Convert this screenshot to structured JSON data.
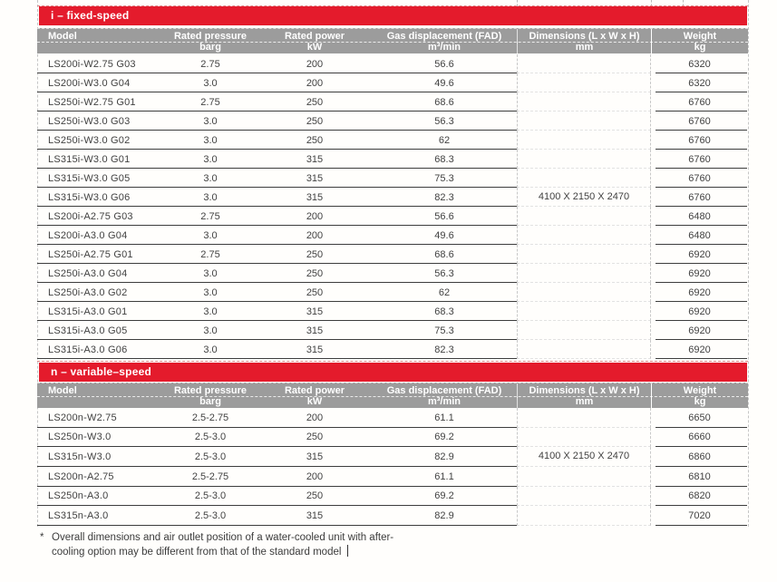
{
  "header": {
    "model": "Model",
    "pressure": "Rated pressure",
    "pressure_unit": "barg",
    "power": "Rated power",
    "power_unit": "kW",
    "fad": "Gas displacement (FAD)",
    "fad_unit": "m³/min",
    "dims": "Dimensions (L x W x H)",
    "dims_unit": "mm",
    "weight": "Weight",
    "weight_unit": "kg"
  },
  "sections": [
    {
      "banner": "i – fixed-speed",
      "dimensions_value": "4100 X 2150 X 2470",
      "rows": [
        {
          "model": "LS200i-W2.75 G03",
          "pressure": "2.75",
          "power": "200",
          "fad": "56.6",
          "weight": "6320"
        },
        {
          "model": "LS200i-W3.0 G04",
          "pressure": "3.0",
          "power": "200",
          "fad": "49.6",
          "weight": "6320"
        },
        {
          "model": "LS250i-W2.75 G01",
          "pressure": "2.75",
          "power": "250",
          "fad": "68.6",
          "weight": "6760"
        },
        {
          "model": "LS250i-W3.0 G03",
          "pressure": "3.0",
          "power": "250",
          "fad": "56.3",
          "weight": "6760"
        },
        {
          "model": "LS250i-W3.0 G02",
          "pressure": "3.0",
          "power": "250",
          "fad": "62",
          "weight": "6760"
        },
        {
          "model": "LS315i-W3.0 G01",
          "pressure": "3.0",
          "power": "315",
          "fad": "68.3",
          "weight": "6760"
        },
        {
          "model": "LS315i-W3.0 G05",
          "pressure": "3.0",
          "power": "315",
          "fad": "75.3",
          "weight": "6760"
        },
        {
          "model": "LS315i-W3.0 G06",
          "pressure": "3.0",
          "power": "315",
          "fad": "82.3",
          "weight": "6760"
        },
        {
          "model": "LS200i-A2.75 G03",
          "pressure": "2.75",
          "power": "200",
          "fad": "56.6",
          "weight": "6480"
        },
        {
          "model": "LS200i-A3.0 G04",
          "pressure": "3.0",
          "power": "200",
          "fad": "49.6",
          "weight": "6480"
        },
        {
          "model": "LS250i-A2.75 G01",
          "pressure": "2.75",
          "power": "250",
          "fad": "68.6",
          "weight": "6920"
        },
        {
          "model": "LS250i-A3.0 G04",
          "pressure": "3.0",
          "power": "250",
          "fad": "56.3",
          "weight": "6920"
        },
        {
          "model": "LS250i-A3.0 G02",
          "pressure": "3.0",
          "power": "250",
          "fad": "62",
          "weight": "6920"
        },
        {
          "model": "LS315i-A3.0 G01",
          "pressure": "3.0",
          "power": "315",
          "fad": "68.3",
          "weight": "6920"
        },
        {
          "model": "LS315i-A3.0 G05",
          "pressure": "3.0",
          "power": "315",
          "fad": "75.3",
          "weight": "6920"
        },
        {
          "model": "LS315i-A3.0 G06",
          "pressure": "3.0",
          "power": "315",
          "fad": "82.3",
          "weight": "6920"
        }
      ]
    },
    {
      "banner": "n – variable–speed",
      "dimensions_value": "4100 X 2150 X 2470",
      "rows": [
        {
          "model": "LS200n-W2.75",
          "pressure": "2.5-2.75",
          "power": "200",
          "fad": "61.1",
          "weight": "6650"
        },
        {
          "model": "LS250n-W3.0",
          "pressure": "2.5-3.0",
          "power": "250",
          "fad": "69.2",
          "weight": "6660"
        },
        {
          "model": "LS315n-W3.0",
          "pressure": "2.5-3.0",
          "power": "315",
          "fad": "82.9",
          "weight": "6860"
        },
        {
          "model": "LS200n-A2.75",
          "pressure": "2.5-2.75",
          "power": "200",
          "fad": "61.1",
          "weight": "6810"
        },
        {
          "model": "LS250n-A3.0",
          "pressure": "2.5-3.0",
          "power": "250",
          "fad": "69.2",
          "weight": "6820"
        },
        {
          "model": "LS315n-A3.0",
          "pressure": "2.5-3.0",
          "power": "315",
          "fad": "82.9",
          "weight": "7020"
        }
      ]
    }
  ],
  "footnote": {
    "marker": "*",
    "text": "Overall dimensions and air outlet position of a water-cooled unit with after-cooling option may be different from that of the standard model"
  },
  "colors": {
    "banner_red": "#e41b2c",
    "header_gray": "#9c9c9c",
    "line_dark": "#3d3d3d",
    "line_light": "#c9c9c9",
    "text": "#414141"
  }
}
